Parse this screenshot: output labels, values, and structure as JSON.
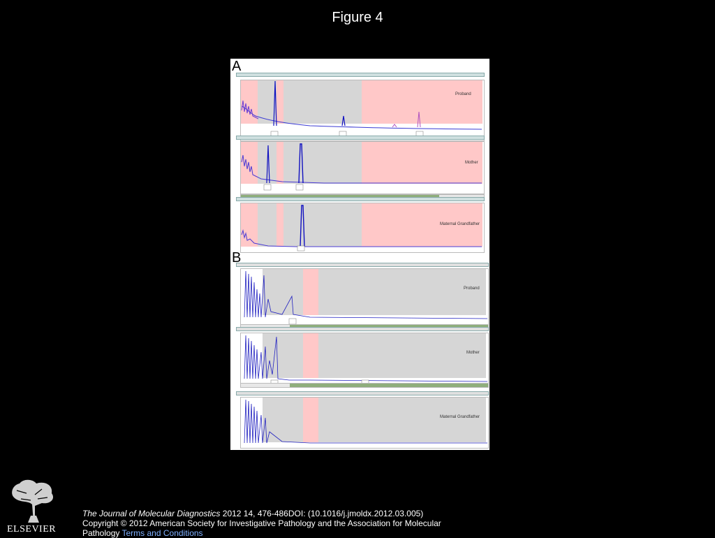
{
  "figure_title": "Figure 4",
  "panels": {
    "a_letter": "A",
    "b_letter": "B",
    "a_traces": [
      "Proband",
      "Mother",
      "Maternal Grandfather"
    ],
    "b_traces": [
      "Proband",
      "Mother",
      "Maternal Grandfather"
    ]
  },
  "footer": {
    "journal": "The Journal of Molecular Diagnostics",
    "citation": " 2012 14, 476-486DOI: (10.1016/j.jmoldx.2012.03.005)",
    "copyright": "Copyright © 2012 American Society for Investigative Pathology and the Association for Molecular Pathology",
    "terms": "Terms and Conditions"
  },
  "logo": {
    "word": "ELSEVIER",
    "icon": "elsevier-tree-icon"
  }
}
